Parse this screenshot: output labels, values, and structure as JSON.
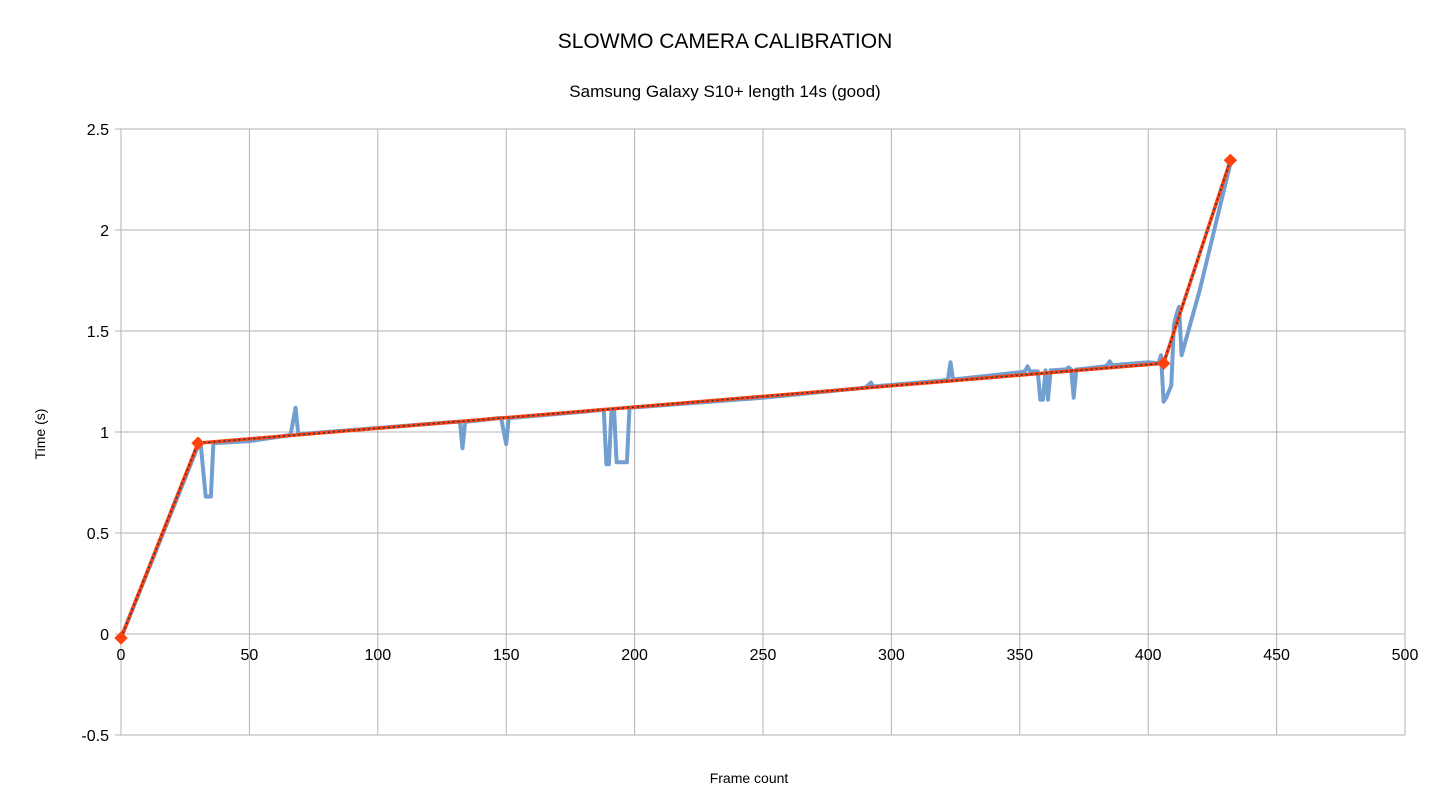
{
  "chart_data": {
    "type": "line",
    "title": "SLOWMO CAMERA CALIBRATION",
    "subtitle": "Samsung Galaxy S10+ length 14s (good)",
    "xlabel": "Frame count",
    "ylabel": "Time (s)",
    "xlim": [
      0,
      500
    ],
    "ylim": [
      -0.5,
      2.5
    ],
    "x_ticks": [
      0,
      50,
      100,
      150,
      200,
      250,
      300,
      350,
      400,
      450,
      500
    ],
    "y_ticks": [
      -0.5,
      0,
      0.5,
      1,
      1.5,
      2,
      2.5
    ],
    "x_tick_labels": [
      "0",
      "50",
      "100",
      "150",
      "200",
      "250",
      "300",
      "350",
      "400",
      "450",
      "500"
    ],
    "y_tick_labels": [
      "-0.5",
      "0",
      "0.5",
      "1",
      "1.5",
      "2",
      "2.5"
    ],
    "grid": true,
    "legend": "none",
    "series": [
      {
        "color": "#729fcf",
        "style": "measured",
        "x": [
          0,
          30,
          31,
          33,
          34,
          35,
          36,
          50,
          66,
          68,
          69,
          70,
          100,
          130,
          132,
          133,
          134,
          148,
          150,
          151,
          152,
          180,
          188,
          189,
          190,
          191,
          192,
          193,
          194,
          195,
          196,
          197,
          198,
          250,
          290,
          292,
          293,
          320,
          322,
          323,
          324,
          350,
          352,
          353,
          354,
          357,
          358,
          359,
          360,
          361,
          362,
          368,
          369,
          370,
          371,
          372,
          373,
          383,
          384,
          385,
          386,
          400,
          404,
          405,
          406,
          407,
          408,
          409,
          410,
          411,
          412,
          413,
          420,
          432
        ],
        "y": [
          -0.02,
          0.93,
          0.945,
          0.68,
          0.68,
          0.68,
          0.945,
          0.955,
          0.985,
          1.12,
          0.99,
          0.99,
          1.02,
          1.05,
          1.05,
          0.92,
          1.05,
          1.07,
          0.94,
          1.07,
          1.07,
          1.1,
          1.11,
          0.84,
          0.84,
          1.11,
          1.11,
          0.85,
          0.85,
          0.85,
          0.85,
          0.85,
          1.12,
          1.17,
          1.22,
          1.245,
          1.225,
          1.255,
          1.26,
          1.345,
          1.26,
          1.295,
          1.3,
          1.325,
          1.3,
          1.3,
          1.16,
          1.16,
          1.305,
          1.16,
          1.305,
          1.31,
          1.32,
          1.31,
          1.17,
          1.31,
          1.31,
          1.325,
          1.33,
          1.35,
          1.33,
          1.345,
          1.34,
          1.38,
          1.15,
          1.17,
          1.2,
          1.23,
          1.53,
          1.58,
          1.62,
          1.38,
          1.7,
          2.33
        ]
      },
      {
        "color": "#1f3a5f",
        "style": "dotted",
        "x": [
          0,
          30,
          406,
          432
        ],
        "y": [
          -0.02,
          0.945,
          1.34,
          2.345
        ]
      },
      {
        "color": "#ff420e",
        "style": "fit",
        "markers": "diamond",
        "x": [
          0,
          30,
          406,
          432
        ],
        "y": [
          -0.02,
          0.945,
          1.34,
          2.345
        ]
      }
    ]
  }
}
